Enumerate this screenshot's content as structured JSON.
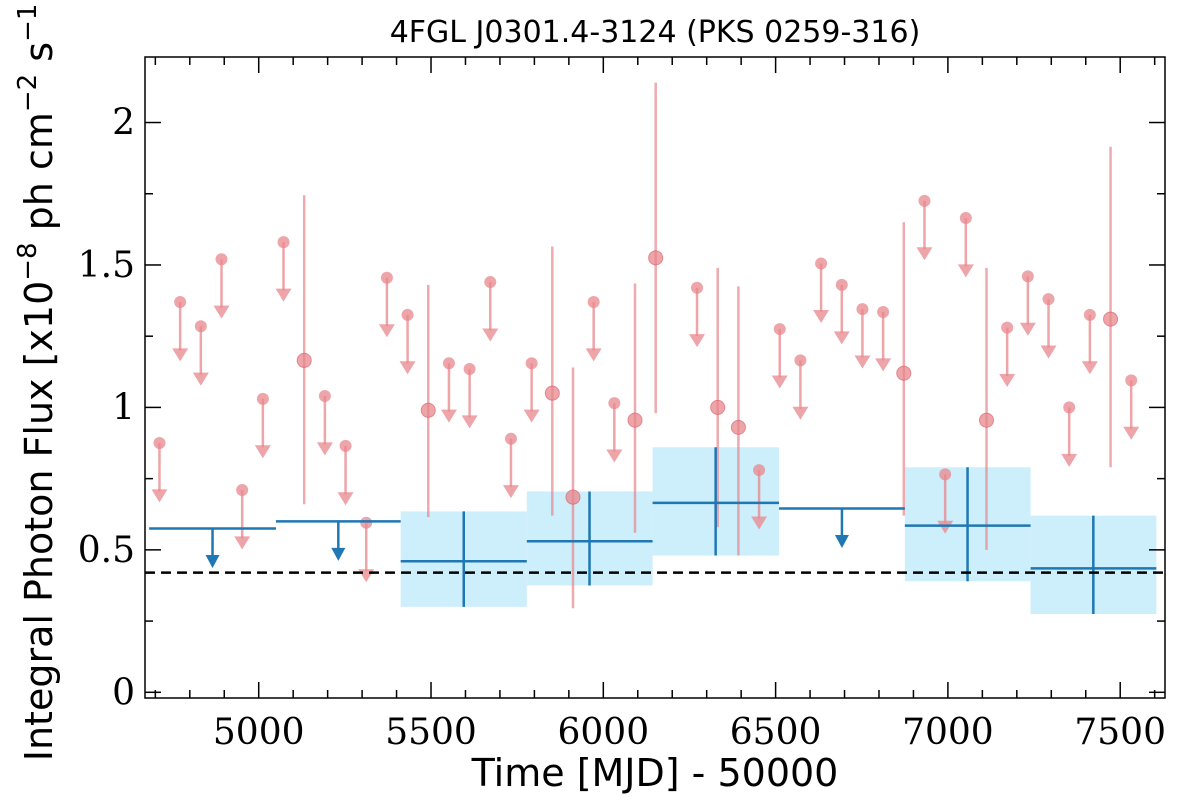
{
  "chart_data": {
    "type": "scatter",
    "title": "4FGL J0301.4-3124 (PKS 0259-316)",
    "xlabel": "Time [MJD] - 50000",
    "ylabel": "Integral Photon Flux [x10^-8 ph cm^-2 s^-1]",
    "xlim": [
      4670,
      7630
    ],
    "ylim": [
      -0.02,
      2.23
    ],
    "xticks": [
      5000,
      5500,
      6000,
      6500,
      7000,
      7500
    ],
    "xtick_labels": [
      "5000",
      "5500",
      "6000",
      "6500",
      "7000",
      "7500"
    ],
    "yticks": [
      0,
      0.5,
      1,
      1.5,
      2
    ],
    "ytick_labels": [
      "0",
      "0.5",
      "1",
      "1.5",
      "2"
    ],
    "grid": false,
    "baseline": 0.42,
    "colors": {
      "fine": "#e8878c",
      "coarse": "#1f77b4",
      "band": "#cdeefb",
      "baseline": "#000000"
    },
    "series": [
      {
        "bin": "fine",
        "upper_limits": [
          {
            "x": 4712,
            "y": 0.875
          },
          {
            "x": 4772,
            "y": 1.37
          },
          {
            "x": 4832,
            "y": 1.285
          },
          {
            "x": 4892,
            "y": 1.52
          },
          {
            "x": 4952,
            "y": 0.71
          },
          {
            "x": 5012,
            "y": 1.03
          },
          {
            "x": 5072,
            "y": 1.58
          },
          {
            "x": 5192,
            "y": 1.04
          },
          {
            "x": 5252,
            "y": 0.865
          },
          {
            "x": 5312,
            "y": 0.595
          },
          {
            "x": 5372,
            "y": 1.455
          },
          {
            "x": 5432,
            "y": 1.325
          },
          {
            "x": 5552,
            "y": 1.155
          },
          {
            "x": 5612,
            "y": 1.135
          },
          {
            "x": 5672,
            "y": 1.44
          },
          {
            "x": 5732,
            "y": 0.89
          },
          {
            "x": 5792,
            "y": 1.155
          },
          {
            "x": 5972,
            "y": 1.37
          },
          {
            "x": 6032,
            "y": 1.015
          },
          {
            "x": 6272,
            "y": 1.42
          },
          {
            "x": 6452,
            "y": 0.78
          },
          {
            "x": 6512,
            "y": 1.275
          },
          {
            "x": 6572,
            "y": 1.165
          },
          {
            "x": 6632,
            "y": 1.505
          },
          {
            "x": 6692,
            "y": 1.43
          },
          {
            "x": 6752,
            "y": 1.345
          },
          {
            "x": 6812,
            "y": 1.335
          },
          {
            "x": 6932,
            "y": 1.725
          },
          {
            "x": 6992,
            "y": 0.765
          },
          {
            "x": 7052,
            "y": 1.665
          },
          {
            "x": 7172,
            "y": 1.28
          },
          {
            "x": 7232,
            "y": 1.46
          },
          {
            "x": 7292,
            "y": 1.38
          },
          {
            "x": 7352,
            "y": 1.0
          },
          {
            "x": 7412,
            "y": 1.325
          },
          {
            "x": 7532,
            "y": 1.095
          }
        ],
        "detections": [
          {
            "x": 5132,
            "y": 1.165,
            "ylo": 0.66,
            "yhi": 1.745
          },
          {
            "x": 5492,
            "y": 0.99,
            "ylo": 0.615,
            "yhi": 1.43
          },
          {
            "x": 5852,
            "y": 1.05,
            "ylo": 0.62,
            "yhi": 1.565
          },
          {
            "x": 5912,
            "y": 0.685,
            "ylo": 0.295,
            "yhi": 1.14
          },
          {
            "x": 6092,
            "y": 0.955,
            "ylo": 0.56,
            "yhi": 1.435
          },
          {
            "x": 6152,
            "y": 1.525,
            "ylo": 0.98,
            "yhi": 2.14
          },
          {
            "x": 6332,
            "y": 1.0,
            "ylo": 0.58,
            "yhi": 1.49
          },
          {
            "x": 6392,
            "y": 0.93,
            "ylo": 0.48,
            "yhi": 1.425
          },
          {
            "x": 6872,
            "y": 1.12,
            "ylo": 0.62,
            "yhi": 1.65
          },
          {
            "x": 7112,
            "y": 0.955,
            "ylo": 0.5,
            "yhi": 1.49
          },
          {
            "x": 7472,
            "y": 1.31,
            "ylo": 0.79,
            "yhi": 1.915
          }
        ]
      },
      {
        "bin": "coarse",
        "upper_limits": [
          {
            "x0": 4682,
            "x1": 5050,
            "y": 0.575
          },
          {
            "x0": 5050,
            "x1": 5412,
            "y": 0.6
          },
          {
            "x0": 6510,
            "x1": 6875,
            "y": 0.645
          }
        ],
        "detections": [
          {
            "x0": 5412,
            "x1": 5778,
            "x": 5595,
            "y": 0.46,
            "ylo": 0.3,
            "yhi": 0.635
          },
          {
            "x0": 5778,
            "x1": 6143,
            "x": 5960,
            "y": 0.53,
            "ylo": 0.375,
            "yhi": 0.705
          },
          {
            "x0": 6143,
            "x1": 6510,
            "x": 6326,
            "y": 0.665,
            "ylo": 0.48,
            "yhi": 0.86
          },
          {
            "x0": 6875,
            "x1": 7240,
            "x": 7057,
            "y": 0.585,
            "ylo": 0.39,
            "yhi": 0.79
          },
          {
            "x0": 7240,
            "x1": 7605,
            "x": 7422,
            "y": 0.435,
            "ylo": 0.275,
            "yhi": 0.62
          }
        ]
      }
    ]
  }
}
